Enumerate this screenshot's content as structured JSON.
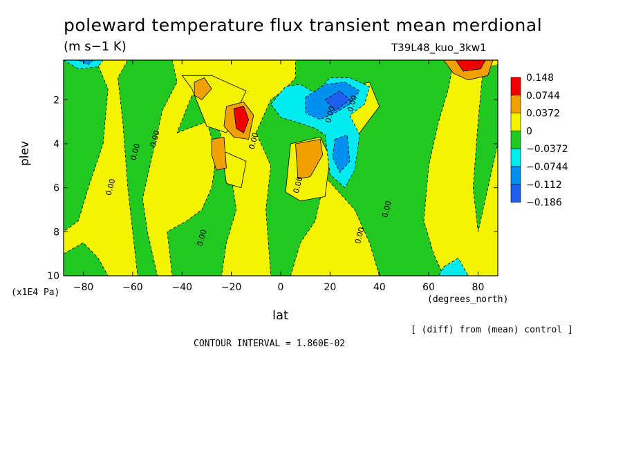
{
  "chart_data": {
    "type": "heatmap",
    "title": "poleward temperature flux transient mean merdional",
    "units": "(m s−1 K)",
    "run_label": "T39L48_kuo_3kw1",
    "xlabel": "lat",
    "x_units": "(degrees_north)",
    "ylabel": "plev",
    "y_units": "(x1E4 Pa)",
    "xlim": [
      -88,
      88
    ],
    "ylim": [
      10,
      0.2
    ],
    "x_ticks": [
      -80,
      -60,
      -40,
      -20,
      0,
      20,
      40,
      60,
      80
    ],
    "x_tick_labels": [
      "−80",
      "−60",
      "−40",
      "−20",
      "0",
      "20",
      "40",
      "60",
      "80"
    ],
    "y_ticks": [
      2,
      4,
      6,
      8,
      10
    ],
    "y_tick_labels": [
      "2",
      "4",
      "6",
      "8",
      "10"
    ],
    "background_color": "#f4f400",
    "legend": {
      "placement": "right",
      "levels": [
        "0.148",
        "0.0744",
        "0.0372",
        "0",
        "−0.0372",
        "−0.0744",
        "−0.112",
        "−0.186"
      ],
      "colors": [
        "#f00000",
        "#f0a000",
        "#f4f400",
        "#22c822",
        "#00eaf0",
        "#0090f0",
        "#1e5ff0"
      ]
    },
    "contour_labels": [
      "0.00",
      "0.00",
      "0.00",
      "0.00",
      "0.00",
      "0.00",
      "0.00",
      "0.00",
      "0.00",
      "0.00"
    ],
    "regions": [
      {
        "level": "neg1",
        "color": "#22c822",
        "points": [
          [
            -88,
            0.2
          ],
          [
            -75,
            0.2
          ],
          [
            -70,
            1.5
          ],
          [
            -72,
            4
          ],
          [
            -78,
            6
          ],
          [
            -82,
            7.5
          ],
          [
            -88,
            8
          ]
        ]
      },
      {
        "level": "neg1",
        "color": "#22c822",
        "points": [
          [
            -88,
            9
          ],
          [
            -80,
            8.5
          ],
          [
            -74,
            9.2
          ],
          [
            -70,
            10
          ],
          [
            -88,
            10
          ]
        ]
      },
      {
        "level": "neg1",
        "color": "#22c822",
        "points": [
          [
            -62,
            0.2
          ],
          [
            -44,
            0.2
          ],
          [
            -42,
            1.2
          ],
          [
            -48,
            2.5
          ],
          [
            -52,
            4.5
          ],
          [
            -56,
            6.5
          ],
          [
            -54,
            8
          ],
          [
            -50,
            10
          ],
          [
            -58,
            10
          ],
          [
            -60,
            8
          ],
          [
            -62,
            6
          ],
          [
            -64,
            3
          ],
          [
            -66,
            1
          ]
        ]
      },
      {
        "level": "neg1",
        "color": "#22c822",
        "points": [
          [
            -42,
            3.5
          ],
          [
            -30,
            3
          ],
          [
            -26,
            4.5
          ],
          [
            -28,
            6
          ],
          [
            -32,
            7
          ],
          [
            -38,
            7.5
          ],
          [
            -46,
            8
          ],
          [
            -44,
            10
          ],
          [
            -24,
            10
          ],
          [
            -22,
            8.5
          ],
          [
            -18,
            7
          ],
          [
            -20,
            5.5
          ],
          [
            -28,
            2
          ],
          [
            -36,
            1.8
          ]
        ]
      },
      {
        "level": "neg1",
        "color": "#22c822",
        "points": [
          [
            -10,
            3.5
          ],
          [
            -4,
            2
          ],
          [
            2,
            1.5
          ],
          [
            6,
            1
          ],
          [
            6,
            0.2
          ],
          [
            70,
            0.2
          ],
          [
            68,
            1.5
          ],
          [
            64,
            3
          ],
          [
            60,
            5
          ],
          [
            58,
            7.5
          ],
          [
            62,
            9
          ],
          [
            66,
            10
          ],
          [
            40,
            10
          ],
          [
            36,
            8.5
          ],
          [
            30,
            7
          ],
          [
            22,
            6
          ],
          [
            18,
            5.5
          ],
          [
            14,
            7.5
          ],
          [
            8,
            8.5
          ],
          [
            4,
            10
          ],
          [
            -4,
            10
          ],
          [
            -6,
            7
          ],
          [
            -4,
            5
          ],
          [
            -8,
            4
          ]
        ]
      },
      {
        "level": "neg1",
        "color": "#22c822",
        "points": [
          [
            82,
            0.6
          ],
          [
            88,
            0.4
          ],
          [
            88,
            4
          ],
          [
            84,
            6
          ],
          [
            80,
            8
          ],
          [
            78,
            6
          ],
          [
            80,
            3
          ]
        ]
      },
      {
        "level": "pos1",
        "color": "#f4f400",
        "points": [
          [
            -40,
            0.9
          ],
          [
            -28,
            0.9
          ],
          [
            -20,
            1.3
          ],
          [
            -14,
            1.6
          ],
          [
            -22,
            3.5
          ],
          [
            -30,
            3.2
          ],
          [
            -36,
            1.5
          ]
        ]
      },
      {
        "level": "pos1",
        "color": "#f4f400",
        "points": [
          [
            -24,
            4.3
          ],
          [
            -14,
            4.8
          ],
          [
            -16,
            6
          ],
          [
            -22,
            5.8
          ]
        ]
      },
      {
        "level": "pos1",
        "color": "#f4f400",
        "points": [
          [
            4,
            4
          ],
          [
            16,
            3.7
          ],
          [
            20,
            4.6
          ],
          [
            18,
            6.4
          ],
          [
            8,
            6.6
          ],
          [
            2,
            6.2
          ]
        ]
      },
      {
        "level": "pos1",
        "color": "#f4f400",
        "points": [
          [
            24,
            1.5
          ],
          [
            36,
            1.2
          ],
          [
            40,
            2.3
          ],
          [
            32,
            3.5
          ],
          [
            26,
            4.2
          ],
          [
            22,
            2.6
          ]
        ]
      },
      {
        "level": "pos2",
        "color": "#f0a000",
        "points": [
          [
            -35,
            1.2
          ],
          [
            -31,
            1
          ],
          [
            -28,
            1.5
          ],
          [
            -32,
            2
          ],
          [
            -35,
            1.8
          ]
        ]
      },
      {
        "level": "pos2",
        "color": "#f0a000",
        "points": [
          [
            -22,
            2.3
          ],
          [
            -15,
            2.1
          ],
          [
            -11,
            2.7
          ],
          [
            -13,
            3.8
          ],
          [
            -19,
            3.7
          ],
          [
            -23,
            3.2
          ]
        ]
      },
      {
        "level": "pos2",
        "color": "#f0a000",
        "points": [
          [
            -28,
            3.8
          ],
          [
            -23,
            3.7
          ],
          [
            -22,
            5.1
          ],
          [
            -26,
            5.2
          ],
          [
            -28,
            4.5
          ]
        ]
      },
      {
        "level": "pos2",
        "color": "#f0a000",
        "points": [
          [
            6,
            4
          ],
          [
            16,
            3.8
          ],
          [
            17,
            4.5
          ],
          [
            12,
            5.5
          ],
          [
            7,
            5.6
          ]
        ]
      },
      {
        "level": "pos2",
        "color": "#f0a000",
        "points": [
          [
            66,
            0.2
          ],
          [
            86,
            0.2
          ],
          [
            84,
            0.9
          ],
          [
            76,
            1.1
          ],
          [
            70,
            0.8
          ]
        ]
      },
      {
        "level": "pos3",
        "color": "#f00000",
        "points": [
          [
            -19,
            2.4
          ],
          [
            -15,
            2.3
          ],
          [
            -13,
            2.9
          ],
          [
            -15,
            3.5
          ],
          [
            -18,
            3.3
          ]
        ]
      },
      {
        "level": "pos3",
        "color": "#f00000",
        "points": [
          [
            71,
            0.2
          ],
          [
            83,
            0.2
          ],
          [
            81,
            0.6
          ],
          [
            74,
            0.7
          ]
        ]
      },
      {
        "level": "neg2",
        "color": "#00eaf0",
        "points": [
          [
            -4,
            2.2
          ],
          [
            2,
            1.4
          ],
          [
            8,
            1.3
          ],
          [
            14,
            1.7
          ],
          [
            20,
            1.0
          ],
          [
            28,
            1.0
          ],
          [
            36,
            1.4
          ],
          [
            34,
            2.2
          ],
          [
            28,
            2.7
          ],
          [
            32,
            3.6
          ],
          [
            30,
            5.2
          ],
          [
            26,
            6.0
          ],
          [
            20,
            5.4
          ],
          [
            18,
            3.6
          ],
          [
            14,
            3.3
          ],
          [
            6,
            3.0
          ],
          [
            0,
            2.8
          ]
        ]
      },
      {
        "level": "neg2",
        "color": "#00eaf0",
        "points": [
          [
            -88,
            0.2
          ],
          [
            -72,
            0.2
          ],
          [
            -74,
            0.5
          ],
          [
            -82,
            0.6
          ]
        ]
      },
      {
        "level": "neg2",
        "color": "#00eaf0",
        "points": [
          [
            66,
            9.6
          ],
          [
            72,
            9.2
          ],
          [
            76,
            10
          ],
          [
            64,
            10
          ]
        ]
      },
      {
        "level": "neg3",
        "color": "#0090f0",
        "points": [
          [
            10,
            1.9
          ],
          [
            18,
            1.3
          ],
          [
            26,
            1.2
          ],
          [
            32,
            1.6
          ],
          [
            28,
            2.2
          ],
          [
            22,
            2.6
          ],
          [
            16,
            2.9
          ],
          [
            10,
            2.6
          ]
        ]
      },
      {
        "level": "neg3",
        "color": "#0090f0",
        "points": [
          [
            22,
            3.8
          ],
          [
            27,
            3.6
          ],
          [
            28,
            4.8
          ],
          [
            24,
            5.3
          ],
          [
            21,
            4.6
          ]
        ]
      },
      {
        "level": "neg3",
        "color": "#0090f0",
        "points": [
          [
            -82,
            0.2
          ],
          [
            -76,
            0.2
          ],
          [
            -78,
            0.4
          ]
        ]
      },
      {
        "level": "neg4",
        "color": "#1e5ff0",
        "points": [
          [
            18,
            2.0
          ],
          [
            24,
            1.6
          ],
          [
            28,
            2.0
          ],
          [
            22,
            2.5
          ]
        ]
      }
    ]
  }
}
